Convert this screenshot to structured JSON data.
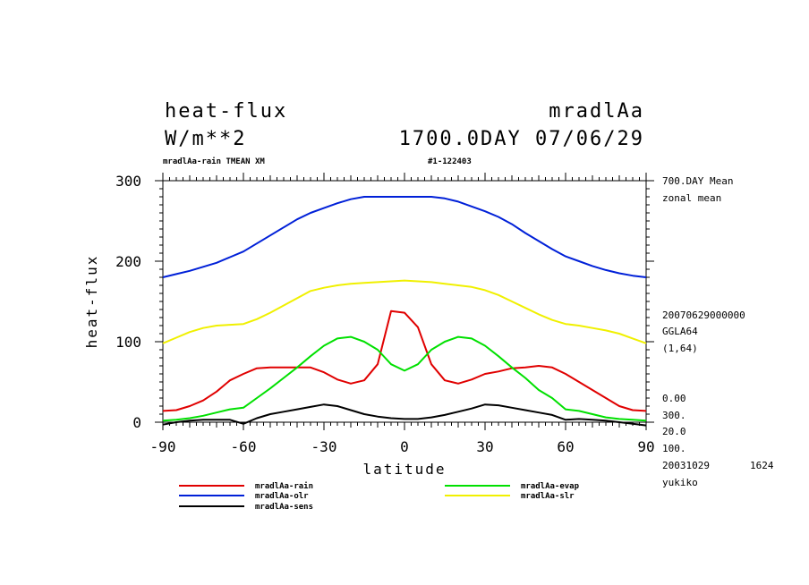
{
  "header": {
    "title": "heat-flux",
    "units": "W/m**2",
    "experiment": "mradlAa",
    "time_info": "1700.0DAY 07/06/29",
    "subtitle_left": "mradlAa-rain TMEAN XM",
    "subtitle_right": "#1-122403"
  },
  "side_info": {
    "mean_label": "700.DAY Mean",
    "mean_type": "zonal mean",
    "date_code": "20070629000000",
    "grid": "GGLA64",
    "grid_dims": "(1,64)",
    "lower": [
      "0.00",
      "300.",
      "20.0",
      "100."
    ],
    "build_date": "20031029",
    "build_time": "1624",
    "author": "yukiko"
  },
  "chart_data": {
    "type": "line",
    "xlabel": "latitude",
    "ylabel": "heat-flux",
    "xlim": [
      -90,
      90
    ],
    "ylim": [
      0,
      300
    ],
    "xticks": [
      "-90",
      "-60",
      "-30",
      "0",
      "30",
      "60",
      "90"
    ],
    "yticks": [
      "0",
      "100",
      "200",
      "300"
    ],
    "x": [
      -90,
      -85,
      -80,
      -75,
      -70,
      -65,
      -60,
      -55,
      -50,
      -45,
      -40,
      -35,
      -30,
      -25,
      -20,
      -15,
      -10,
      -5,
      0,
      5,
      10,
      15,
      20,
      25,
      30,
      35,
      40,
      45,
      50,
      55,
      60,
      65,
      70,
      75,
      80,
      85,
      90
    ],
    "series": [
      {
        "name": "mradlAa-rain",
        "color": "#e00000",
        "values": [
          14,
          15,
          20,
          27,
          38,
          52,
          60,
          67,
          68,
          68,
          68,
          68,
          62,
          53,
          48,
          52,
          72,
          138,
          136,
          118,
          72,
          52,
          48,
          53,
          60,
          63,
          67,
          68,
          70,
          68,
          60,
          50,
          40,
          30,
          20,
          15,
          14
        ]
      },
      {
        "name": "mradlAa-evap",
        "color": "#00e000",
        "values": [
          2,
          3,
          5,
          8,
          12,
          16,
          18,
          30,
          42,
          55,
          68,
          82,
          95,
          104,
          106,
          100,
          90,
          72,
          64,
          72,
          90,
          100,
          106,
          104,
          95,
          82,
          68,
          55,
          40,
          30,
          16,
          14,
          10,
          6,
          4,
          3,
          2
        ]
      },
      {
        "name": "mradlAa-olr",
        "color": "#0020d8",
        "values": [
          180,
          184,
          188,
          193,
          198,
          205,
          212,
          222,
          232,
          242,
          252,
          260,
          266,
          272,
          277,
          280,
          280,
          280,
          280,
          280,
          280,
          278,
          274,
          268,
          262,
          255,
          246,
          235,
          225,
          215,
          206,
          200,
          194,
          189,
          185,
          182,
          180
        ]
      },
      {
        "name": "mradlAa-slr",
        "color": "#f0f000",
        "values": [
          98,
          105,
          112,
          117,
          120,
          121,
          122,
          128,
          136,
          145,
          154,
          163,
          167,
          170,
          172,
          173,
          174,
          175,
          176,
          175,
          174,
          172,
          170,
          168,
          164,
          158,
          150,
          142,
          134,
          127,
          122,
          120,
          117,
          114,
          110,
          104,
          98
        ]
      },
      {
        "name": "mradlAa-sens",
        "color": "#000000",
        "values": [
          -3,
          0,
          2,
          3,
          3,
          3,
          -2,
          5,
          10,
          13,
          16,
          19,
          22,
          20,
          15,
          10,
          7,
          5,
          4,
          4,
          6,
          9,
          13,
          17,
          22,
          21,
          18,
          15,
          12,
          9,
          3,
          4,
          3,
          2,
          0,
          -2,
          -4
        ]
      }
    ]
  },
  "legend_rows": [
    [
      "mradlAa-rain",
      "mradlAa-evap"
    ],
    [
      "mradlAa-olr",
      "mradlAa-slr"
    ],
    [
      "mradlAa-sens",
      ""
    ]
  ]
}
